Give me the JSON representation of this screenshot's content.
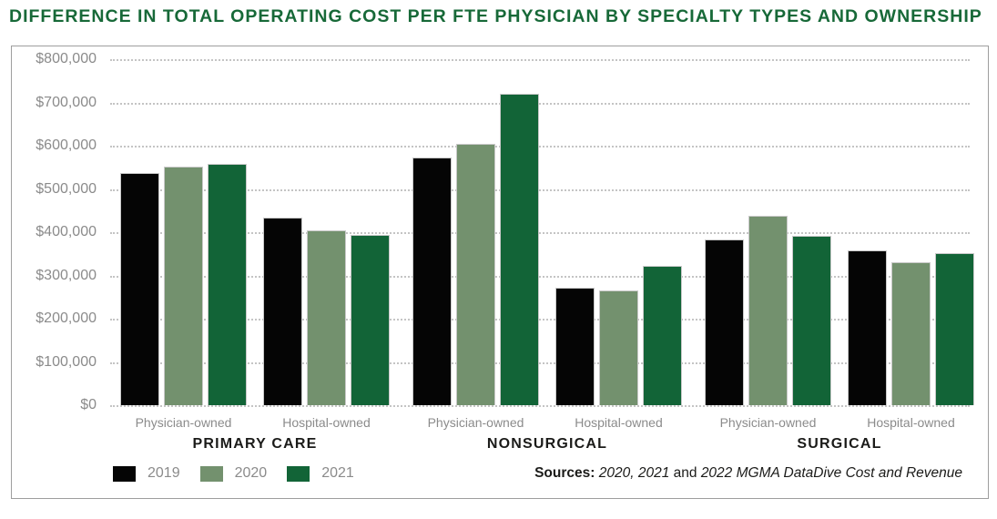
{
  "title": "DIFFERENCE IN TOTAL OPERATING COST PER FTE PHYSICIAN BY SPECIALTY TYPES AND OWNERSHIP",
  "colors": {
    "title_green": "#176938",
    "bar_black": "#050505",
    "bar_sage": "#73916e",
    "bar_green": "#126437",
    "axis_text": "#8b8b8b",
    "label_text": "#1b1b19",
    "grid": "#c4c4c4",
    "frame_border": "#9e9e9e"
  },
  "legend": {
    "items": [
      {
        "label": "2019",
        "color": "#050505"
      },
      {
        "label": "2020",
        "color": "#73916e"
      },
      {
        "label": "2021",
        "color": "#126437"
      }
    ]
  },
  "sources": {
    "label": "Sources:",
    "years": " 2020, 2021",
    "connector": " and ",
    "publication": "2022 MGMA DataDive Cost and Revenue"
  },
  "chart_data": {
    "type": "bar",
    "title": "DIFFERENCE IN TOTAL OPERATING COST PER FTE PHYSICIAN BY SPECIALTY TYPES AND OWNERSHIP",
    "xlabel": "",
    "ylabel": "",
    "ylim": [
      0,
      800000
    ],
    "y_tick_step": 100000,
    "y_tick_labels_top_down": [
      "$800,000",
      "$700,000",
      "$600,000",
      "$500,000",
      "$400,000",
      "$300,000",
      "$200,000",
      "$100,000",
      "$0"
    ],
    "grid": "horizontal dotted",
    "legend_position": "bottom-left",
    "series": [
      "2019",
      "2020",
      "2021"
    ],
    "series_colors": [
      "#050505",
      "#73916e",
      "#126437"
    ],
    "groups": [
      {
        "label": "PRIMARY CARE",
        "subgroups": [
          {
            "label": "Physician-owned",
            "values": [
              537000,
              552000,
              558000
            ]
          },
          {
            "label": "Hospital-owned",
            "values": [
              433000,
              405000,
              394000
            ]
          }
        ]
      },
      {
        "label": "NONSURGICAL",
        "subgroups": [
          {
            "label": "Physician-owned",
            "values": [
              573000,
              604000,
              721000
            ]
          },
          {
            "label": "Hospital-owned",
            "values": [
              272000,
              266000,
              322000
            ]
          }
        ]
      },
      {
        "label": "SURGICAL",
        "subgroups": [
          {
            "label": "Physician-owned",
            "values": [
              384000,
              437000,
              392000
            ]
          },
          {
            "label": "Hospital-owned",
            "values": [
              358000,
              330000,
              352000
            ]
          }
        ]
      }
    ]
  }
}
